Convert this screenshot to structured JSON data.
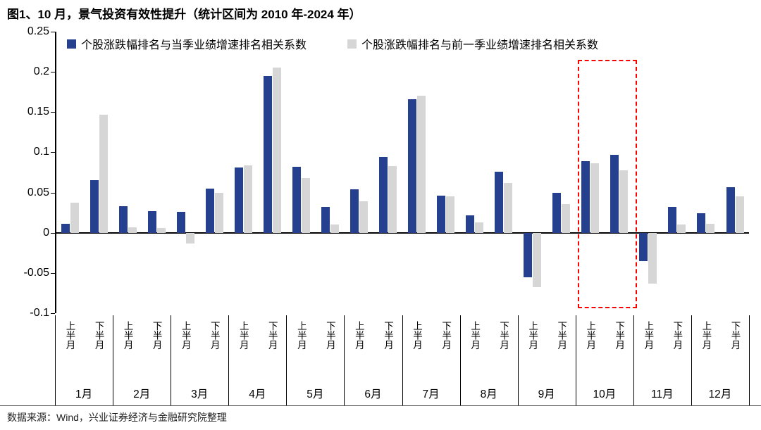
{
  "title": "图1、10 月，景气投资有效性提升（统计区间为 2010 年-2024 年）",
  "source": "数据来源：Wind，兴业证券经济与金融研究院整理",
  "colors": {
    "series_current": "#24408E",
    "series_previous": "#D6D6D6",
    "highlight_box": "#FF0000",
    "axis": "#000000"
  },
  "chart_data": {
    "type": "bar",
    "title": "图1、10 月，景气投资有效性提升（统计区间为 2010 年-2024 年）",
    "legend": [
      "个股涨跌幅排名与当季业绩增速排名相关系数",
      "个股涨跌幅排名与前一季业绩增速排名相关系数"
    ],
    "legend_position": "top",
    "grid": "off",
    "months": [
      "1月",
      "2月",
      "3月",
      "4月",
      "5月",
      "6月",
      "7月",
      "8月",
      "9月",
      "10月",
      "11月",
      "12月"
    ],
    "half_labels": [
      "上半月",
      "下半月"
    ],
    "y_ticks": [
      0.25,
      0.2,
      0.15,
      0.1,
      0.05,
      0,
      -0.05,
      -0.1
    ],
    "ylim": [
      -0.1,
      0.25
    ],
    "series": [
      {
        "name": "个股涨跌幅排名与当季业绩增速排名相关系数",
        "color": "#24408E",
        "values": [
          0.011,
          0.065,
          0.033,
          0.027,
          0.026,
          0.055,
          0.081,
          0.195,
          0.082,
          0.032,
          0.054,
          0.094,
          0.166,
          0.046,
          0.022,
          0.076,
          -0.055,
          0.05,
          0.089,
          0.097,
          -0.035,
          0.032,
          0.024,
          0.057
        ]
      },
      {
        "name": "个股涨跌幅排名与前一季业绩增速排名相关系数",
        "color": "#D6D6D6",
        "values": [
          0.037,
          0.147,
          0.007,
          0.006,
          -0.013,
          0.05,
          0.084,
          0.205,
          0.068,
          0.01,
          0.039,
          0.083,
          0.17,
          0.045,
          0.013,
          0.062,
          -0.068,
          0.036,
          0.086,
          0.078,
          -0.063,
          0.01,
          0.011,
          0.045
        ]
      }
    ],
    "highlight": {
      "month": "10月",
      "month_index": 9,
      "style": "red-dashed-box"
    }
  }
}
